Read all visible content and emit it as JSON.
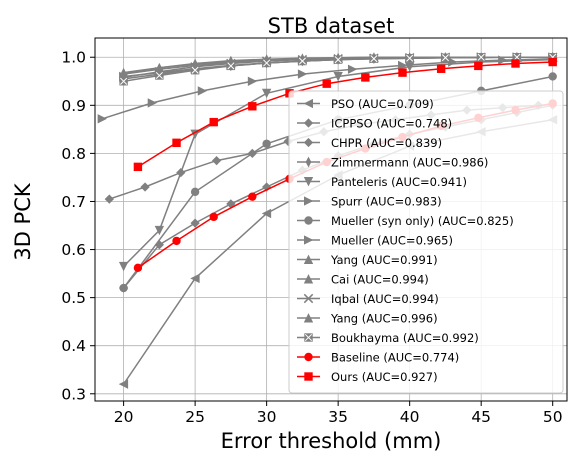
{
  "chart_data": {
    "type": "line",
    "title": "STB dataset",
    "xlabel": "Error threshold (mm)",
    "ylabel": "3D PCK",
    "xlim": [
      18,
      51
    ],
    "ylim": [
      0.285,
      1.04
    ],
    "xticks": [
      20,
      25,
      30,
      35,
      40,
      45,
      50
    ],
    "yticks": [
      0.3,
      0.4,
      0.5,
      0.6,
      0.7,
      0.8,
      0.9,
      1.0
    ],
    "xtick_labels": [
      "20",
      "25",
      "30",
      "35",
      "40",
      "45",
      "50"
    ],
    "ytick_labels": [
      "0.3",
      "0.4",
      "0.5",
      "0.6",
      "0.7",
      "0.8",
      "0.9",
      "1.0"
    ],
    "grid": true,
    "legend_position": "right",
    "series": [
      {
        "name": "PSO (AUC=0.709)",
        "color": "#808080",
        "marker": "triangle-left",
        "x": [
          20,
          25,
          30,
          35,
          40,
          45,
          50
        ],
        "y": [
          0.32,
          0.54,
          0.675,
          0.755,
          0.815,
          0.845,
          0.87
        ]
      },
      {
        "name": "ICPPSO (AUC=0.748)",
        "color": "#808080",
        "marker": "diamond",
        "x": [
          20,
          22.5,
          25,
          27.5,
          30,
          32.5,
          35,
          37.5,
          40,
          42.5,
          45,
          47.5,
          50
        ],
        "y": [
          0.52,
          0.61,
          0.655,
          0.695,
          0.73,
          0.765,
          0.795,
          0.82,
          0.84,
          0.855,
          0.87,
          0.885,
          0.9
        ]
      },
      {
        "name": "CHPR (AUC=0.839)",
        "color": "#808080",
        "marker": "diamond",
        "x": [
          19,
          21.5,
          24,
          26.5,
          29,
          31.5,
          34,
          36.5,
          39,
          41.5,
          44,
          46.5,
          49
        ],
        "y": [
          0.705,
          0.73,
          0.76,
          0.785,
          0.8,
          0.825,
          0.845,
          0.86,
          0.87,
          0.88,
          0.89,
          0.895,
          0.9
        ]
      },
      {
        "name": "Zimmermann (AUC=0.986)",
        "color": "#808080",
        "marker": "thin-diamond",
        "x": [
          20,
          22.5,
          25,
          27.5,
          30,
          32.5,
          35,
          37.5,
          40,
          42.5,
          45,
          47.5,
          50
        ],
        "y": [
          0.955,
          0.965,
          0.975,
          0.982,
          0.988,
          0.992,
          0.995,
          0.997,
          0.998,
          0.999,
          0.999,
          1.0,
          1.0
        ]
      },
      {
        "name": "Panteleris (AUC=0.941)",
        "color": "#808080",
        "marker": "triangle-down",
        "x": [
          20,
          22.5,
          25,
          30,
          35,
          40,
          45,
          50
        ],
        "y": [
          0.565,
          0.64,
          0.84,
          0.925,
          0.96,
          0.98,
          0.99,
          0.995
        ]
      },
      {
        "name": "Spurr (AUC=0.983)",
        "color": "#808080",
        "marker": "triangle-right",
        "x": [
          20,
          22.5,
          25,
          27.5,
          30,
          32.5,
          35,
          37.5,
          40,
          42.5,
          45,
          47.5,
          50
        ],
        "y": [
          0.96,
          0.968,
          0.976,
          0.983,
          0.988,
          0.992,
          0.995,
          0.997,
          0.998,
          0.999,
          1.0,
          1.0,
          1.0
        ]
      },
      {
        "name": "Mueller (syn only) (AUC=0.825)",
        "color": "#808080",
        "marker": "octagon",
        "x": [
          20,
          25,
          30,
          35,
          40,
          45,
          50
        ],
        "y": [
          0.52,
          0.72,
          0.82,
          0.87,
          0.9,
          0.93,
          0.96
        ]
      },
      {
        "name": "Mueller (AUC=0.965)",
        "color": "#808080",
        "marker": "triangle-right",
        "x": [
          18.5,
          22,
          25.5,
          29,
          32.5,
          36,
          39.5,
          43,
          46.5,
          50
        ],
        "y": [
          0.872,
          0.905,
          0.93,
          0.95,
          0.965,
          0.975,
          0.983,
          0.99,
          0.994,
          0.997
        ]
      },
      {
        "name": "Yang (AUC=0.991)",
        "color": "#808080",
        "marker": "triangle-up",
        "x": [
          20,
          22.5,
          25,
          27.5,
          30,
          32.5,
          35,
          37.5,
          40,
          42.5,
          45,
          47.5,
          50
        ],
        "y": [
          0.965,
          0.975,
          0.983,
          0.989,
          0.993,
          0.996,
          0.998,
          0.999,
          1.0,
          1.0,
          1.0,
          1.0,
          1.0
        ]
      },
      {
        "name": "Cai (AUC=0.994)",
        "color": "#808080",
        "marker": "triangle-up",
        "x": [
          20,
          22.5,
          25,
          27.5,
          30,
          32.5,
          35,
          37.5,
          40,
          42.5,
          45,
          47.5,
          50
        ],
        "y": [
          0.968,
          0.978,
          0.986,
          0.991,
          0.995,
          0.997,
          0.999,
          1.0,
          1.0,
          1.0,
          1.0,
          1.0,
          1.0
        ]
      },
      {
        "name": "Iqbal (AUC=0.994)",
        "color": "#808080",
        "marker": "x",
        "x": [
          20,
          22.5,
          25,
          27.5,
          30,
          32.5,
          35,
          37.5,
          40,
          42.5,
          45,
          47.5,
          50
        ],
        "y": [
          0.958,
          0.97,
          0.98,
          0.987,
          0.992,
          0.995,
          0.997,
          0.998,
          0.999,
          1.0,
          1.0,
          1.0,
          1.0
        ]
      },
      {
        "name": "Yang (AUC=0.996)",
        "color": "#808080",
        "marker": "triangle-up",
        "x": [
          20,
          22.5,
          25,
          27.5,
          30,
          32.5,
          35,
          37.5,
          40,
          42.5,
          45,
          47.5,
          50
        ],
        "y": [
          0.965,
          0.978,
          0.987,
          0.993,
          0.996,
          0.998,
          0.999,
          1.0,
          1.0,
          1.0,
          1.0,
          1.0,
          1.0
        ]
      },
      {
        "name": "Boukhayma (AUC=0.992)",
        "color": "#808080",
        "marker": "square-x",
        "x": [
          20,
          22.5,
          25,
          27.5,
          30,
          32.5,
          35,
          37.5,
          40,
          42.5,
          45,
          47.5,
          50
        ],
        "y": [
          0.95,
          0.962,
          0.973,
          0.982,
          0.988,
          0.992,
          0.995,
          0.997,
          0.998,
          0.999,
          1.0,
          1.0,
          1.0
        ]
      },
      {
        "name": "Baseline (AUC=0.774)",
        "color": "#ff0000",
        "marker": "circle",
        "x": [
          21,
          23.7,
          26.3,
          29,
          31.6,
          34.2,
          36.9,
          39.5,
          42.2,
          44.8,
          47.4,
          50
        ],
        "y": [
          0.562,
          0.618,
          0.668,
          0.71,
          0.747,
          0.782,
          0.81,
          0.834,
          0.857,
          0.874,
          0.89,
          0.904
        ]
      },
      {
        "name": "Ours (AUC=0.927)",
        "color": "#ff0000",
        "marker": "square",
        "x": [
          21,
          23.7,
          26.3,
          29,
          31.6,
          34.2,
          36.9,
          39.5,
          42.2,
          44.8,
          47.4,
          50
        ],
        "y": [
          0.772,
          0.822,
          0.865,
          0.898,
          0.925,
          0.945,
          0.958,
          0.968,
          0.976,
          0.982,
          0.987,
          0.99
        ]
      }
    ]
  }
}
